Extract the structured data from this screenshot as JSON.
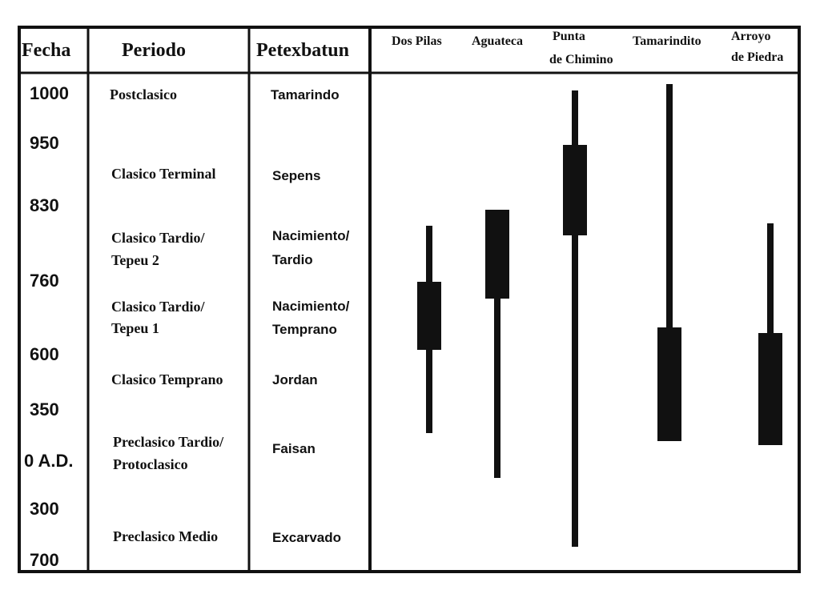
{
  "chart_data": {
    "type": "table",
    "headers": {
      "fecha": "Fecha",
      "periodo": "Periodo",
      "petexbatun": "Petexbatun"
    },
    "dates": [
      "1000",
      "950",
      "830",
      "760",
      "600",
      "350",
      "0 A.D.",
      "300",
      "700"
    ],
    "periods": [
      [
        "Postclasico"
      ],
      [
        "Clasico Terminal"
      ],
      [
        "Clasico Tardio/",
        "Tepeu 2"
      ],
      [
        "Clasico Tardio/",
        "Tepeu 1"
      ],
      [
        "Clasico Temprano"
      ],
      [
        "Preclasico Tardio/",
        "Protoclasico"
      ],
      [
        "Preclasico Medio"
      ]
    ],
    "phases": [
      [
        "Tamarindo"
      ],
      [
        "Sepens"
      ],
      [
        "Nacimiento/",
        "Tardio"
      ],
      [
        "Nacimiento/",
        "Temprano"
      ],
      [
        "Jordan"
      ],
      [
        "Faisan"
      ],
      [
        "Excarvado"
      ]
    ],
    "sites": [
      {
        "name": [
          "Dos Pilas"
        ],
        "range": [
          0.282,
          0.541
        ],
        "main": [
          0.352,
          0.437
        ]
      },
      {
        "name": [
          "Aguateca"
        ],
        "range": [
          0.262,
          0.597
        ],
        "main": [
          0.262,
          0.373
        ]
      },
      {
        "name": [
          "Punta",
          "de Chimino"
        ],
        "range": [
          0.113,
          0.683
        ],
        "main": [
          0.181,
          0.294
        ]
      },
      {
        "name": [
          "Tamarindito"
        ],
        "range": [
          0.105,
          0.551
        ],
        "main": [
          0.409,
          0.551
        ]
      },
      {
        "name": [
          "Arroyo",
          "de Piedra"
        ],
        "range": [
          0.279,
          0.556
        ],
        "main": [
          0.416,
          0.556
        ]
      }
    ]
  }
}
